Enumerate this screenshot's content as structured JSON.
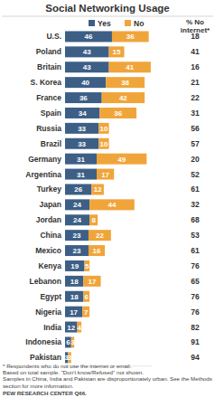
{
  "chart_data": {
    "type": "bar",
    "title": "Social Networking Usage",
    "orientation": "horizontal",
    "stacked": true,
    "data_labels": true,
    "tick_labels": "y",
    "categories": [
      "U.S.",
      "Poland",
      "Britain",
      "S. Korea",
      "France",
      "Spain",
      "Russia",
      "Brazil",
      "Germany",
      "Argentina",
      "Turkey",
      "Japan",
      "Jordan",
      "China",
      "Mexico",
      "Kenya",
      "Lebanon",
      "Egypt",
      "Nigeria",
      "India",
      "Indonesia",
      "Pakistan"
    ],
    "series": [
      {
        "name": "Yes",
        "color": "#3d5f86",
        "values": [
          46,
          43,
          43,
          40,
          36,
          34,
          33,
          33,
          31,
          31,
          26,
          24,
          24,
          23,
          23,
          19,
          18,
          18,
          17,
          12,
          6,
          3
        ]
      },
      {
        "name": "No",
        "color": "#f0a53a",
        "values": [
          36,
          15,
          41,
          38,
          42,
          36,
          10,
          10,
          49,
          17,
          12,
          44,
          8,
          22,
          16,
          5,
          17,
          6,
          7,
          4,
          3,
          3
        ]
      }
    ],
    "xlim": [
      0,
      85
    ],
    "no_internet_label": "% No internet*",
    "no_internet": [
      18,
      41,
      16,
      21,
      22,
      31,
      56,
      57,
      20,
      52,
      61,
      32,
      68,
      53,
      61,
      76,
      65,
      76,
      76,
      82,
      91,
      94
    ],
    "notes": [
      "* Respondents who do not use the internet or email.",
      "Based on total sample. \"Don't know/Refused\" not shown.",
      "Samples in China, India and Pakistan are disproportionately urban. See the Methods section for more information.",
      "PEW RESEARCH CENTER Q66."
    ]
  }
}
